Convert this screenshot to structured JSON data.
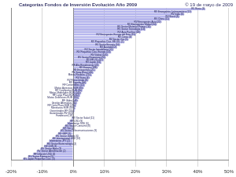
{
  "chart_data": {
    "type": "bar",
    "orientation": "horizontal",
    "title": "Categorías Fondos de Inversión Evolución Año 2009",
    "subtitle": "© 19 de mayo de 2009",
    "categories": [
      "RV Rusia (9)",
      "RV Emergentes Latinoamérica (12)",
      "RV India (6)",
      "RV Brasil (8)",
      "RV China (11)",
      "RV Emergentes Asia (22)",
      "RV Emergentes Global (34)",
      "RV Sector Materias Primas (14)",
      "RV Sector Tecnología (19)",
      "RV Asia Pacífico (28)",
      "RV Emergentes Europa del Este (15)",
      "RV Corea (3)",
      "RV Sector Oro (5)",
      "RV Pequeñas Cías. EE.UU. (7)",
      "RV Sector Energía (16)",
      "RV Australia (2)",
      "RV Sector Inmobiliario (12)",
      "RV Pequeñas Cías. Europa (18)",
      "RV Global (145)",
      "RV Sector Financiero (20)",
      "RV EE.UU. (62)",
      "RV Japón (31)",
      "RF Alto Rendimiento (24)",
      "RV Europa (188)",
      "RF Emergentes (21)",
      "RV Zona Euro (120)",
      "Mixtos Flexibles (210)",
      "RV Suiza (4)",
      "RV Reino Unido (6)",
      "RV España (96)",
      "RF Convertibles (12)",
      "Mixtos Agresivos EUR (85)",
      "RF Corporativa EUR (76)",
      "Mixtos Moderados EUR (140)",
      "RF Largo Plazo EUR (62)",
      "Mixtos Defensivos EUR (160)",
      "RF Global (48)",
      "Gestión Alternativa (35)",
      "RF Corto Plazo EUR (210)",
      "Monetarios EUR (180)",
      "Garantizados RF (350)",
      "Garantizados RV (420)",
      "Fondtesoro (18)",
      "RV Sector Salud (11)",
      "RF USD (9)",
      "Monetarios USD (6)",
      "RV Sector Consumo (8)",
      "RF Yen (2)",
      "RV Sector Telecomunicaciones (9)",
      "RF GBP (3)",
      "RV Sector Utilities (6)",
      "RF Internacional USD (14)",
      "Monetarios JPY (2)",
      "RV Sector Biotecnología (4)",
      "RF CHF (3)",
      "RV Sector Agua (3)",
      "RV Sector Alimentación (2)",
      "RF Inflación USD (4)",
      "RV Sector Farmacia (5)",
      "RV Japón Pequeñas Cías. (3)"
    ],
    "values": [
      42.5,
      38.1,
      35.7,
      34.2,
      31.0,
      28.4,
      26.9,
      25.1,
      23.3,
      21.7,
      20.2,
      19.0,
      17.8,
      16.5,
      15.2,
      14.1,
      13.0,
      12.2,
      11.3,
      10.5,
      9.8,
      9.1,
      8.4,
      7.9,
      7.2,
      6.6,
      6.0,
      5.4,
      4.9,
      4.3,
      3.8,
      3.4,
      3.0,
      2.6,
      2.2,
      1.9,
      1.6,
      1.3,
      1.0,
      0.7,
      0.5,
      0.3,
      0.1,
      -0.6,
      -1.2,
      -2.0,
      -2.8,
      -3.5,
      -4.3,
      -5.0,
      -5.8,
      -6.9,
      -7.8,
      -8.6,
      -9.5,
      -10.6,
      -11.8,
      -13.0,
      -14.6,
      -16.2
    ],
    "color": "#b3b3ee",
    "xlim": [
      -20,
      50
    ],
    "xticks": [
      {
        "value": -20,
        "label": "-20%"
      },
      {
        "value": -10,
        "label": "-10%"
      },
      {
        "value": 0,
        "label": "0%"
      },
      {
        "value": 10,
        "label": "10%"
      },
      {
        "value": 20,
        "label": "20%"
      },
      {
        "value": 30,
        "label": "30%"
      },
      {
        "value": 40,
        "label": "40%"
      },
      {
        "value": 50,
        "label": "50%"
      }
    ],
    "grid": true,
    "tick_labels": "x"
  }
}
